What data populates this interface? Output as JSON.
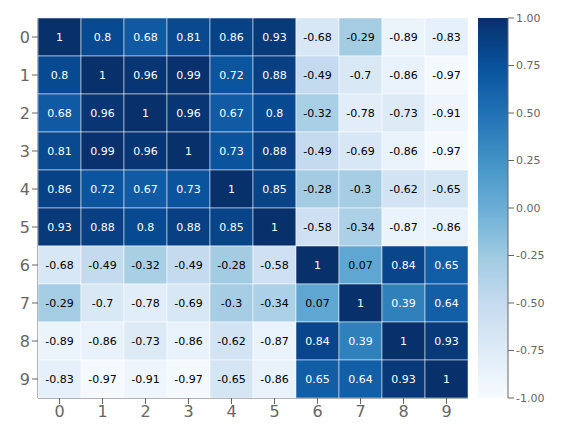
{
  "chart_data": {
    "type": "heatmap",
    "categories": [
      "0",
      "1",
      "2",
      "3",
      "4",
      "5",
      "6",
      "7",
      "8",
      "9"
    ],
    "rows": [
      "0",
      "1",
      "2",
      "3",
      "4",
      "5",
      "6",
      "7",
      "8",
      "9"
    ],
    "cells": [
      [
        1.0,
        0.8,
        0.68,
        0.81,
        0.86,
        0.93,
        -0.68,
        -0.29,
        -0.89,
        -0.83
      ],
      [
        0.8,
        1.0,
        0.96,
        0.99,
        0.72,
        0.88,
        -0.49,
        -0.7,
        -0.86,
        -0.97
      ],
      [
        0.68,
        0.96,
        1.0,
        0.96,
        0.67,
        0.8,
        -0.32,
        -0.78,
        -0.73,
        -0.91
      ],
      [
        0.81,
        0.99,
        0.96,
        1.0,
        0.73,
        0.88,
        -0.49,
        -0.69,
        -0.86,
        -0.97
      ],
      [
        0.86,
        0.72,
        0.67,
        0.73,
        1.0,
        0.85,
        -0.28,
        -0.3,
        -0.62,
        -0.65
      ],
      [
        0.93,
        0.88,
        0.8,
        0.88,
        0.85,
        1.0,
        -0.58,
        -0.34,
        -0.87,
        -0.86
      ],
      [
        -0.68,
        -0.49,
        -0.32,
        -0.49,
        -0.28,
        -0.58,
        1.0,
        0.07,
        0.84,
        0.65
      ],
      [
        -0.29,
        -0.7,
        -0.78,
        -0.69,
        -0.3,
        -0.34,
        0.07,
        1.0,
        0.39,
        0.64
      ],
      [
        -0.89,
        -0.86,
        -0.73,
        -0.86,
        -0.62,
        -0.87,
        0.84,
        0.39,
        1.0,
        0.93
      ],
      [
        -0.83,
        -0.97,
        -0.91,
        -0.97,
        -0.65,
        -0.86,
        0.65,
        0.64,
        0.93,
        1.0
      ]
    ],
    "color": "Blues",
    "colorbar_lim": [
      -1.0,
      1.0
    ],
    "colorbar_ticks": [
      {
        "value": 1.0,
        "label": "1.00"
      },
      0.75,
      {
        "value": 0.5,
        "label": "0.50"
      },
      0.25,
      {
        "value": 0.0,
        "label": "0.00"
      },
      -0.25,
      {
        "value": -0.5,
        "label": "-0.50"
      },
      -0.75,
      {
        "value": -1.0,
        "label": "-1.00"
      }
    ],
    "data_labels": true
  }
}
